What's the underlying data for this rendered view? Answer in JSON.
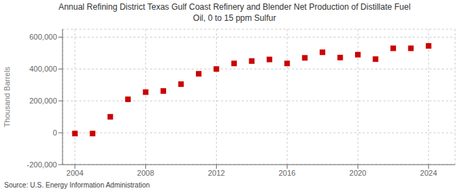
{
  "chart_data": {
    "type": "scatter",
    "title": "Annual Refining District Texas Gulf Coast Refinery and Blender Net Production of Distillate Fuel\nOil, 0 to 15 ppm Sulfur",
    "ylabel": "Thousand Barrels",
    "annotation": "Source: U.S. Energy Information Administration",
    "x": [
      2004,
      2005,
      2006,
      2007,
      2008,
      2009,
      2010,
      2011,
      2012,
      2013,
      2014,
      2015,
      2016,
      2017,
      2018,
      2019,
      2020,
      2021,
      2022,
      2023,
      2024
    ],
    "values": [
      -5000,
      -5000,
      100000,
      210000,
      255000,
      262000,
      305000,
      370000,
      400000,
      435000,
      450000,
      460000,
      435000,
      470000,
      505000,
      472000,
      490000,
      462000,
      530000,
      530000,
      545000
    ],
    "color": "#cc0000",
    "marker": "square",
    "xlim": [
      2003.3,
      2025.5
    ],
    "xticks": [
      2004,
      2008,
      2012,
      2016,
      2020,
      2024
    ],
    "ylim": [
      -200000,
      650000
    ],
    "yticks": [
      {
        "value": -200000,
        "label": "-200,000"
      },
      0,
      {
        "value": 200000,
        "label": "200,000"
      },
      {
        "value": 400000,
        "label": "400,000"
      },
      {
        "value": 600000,
        "label": "600,000"
      }
    ],
    "grid": true
  }
}
